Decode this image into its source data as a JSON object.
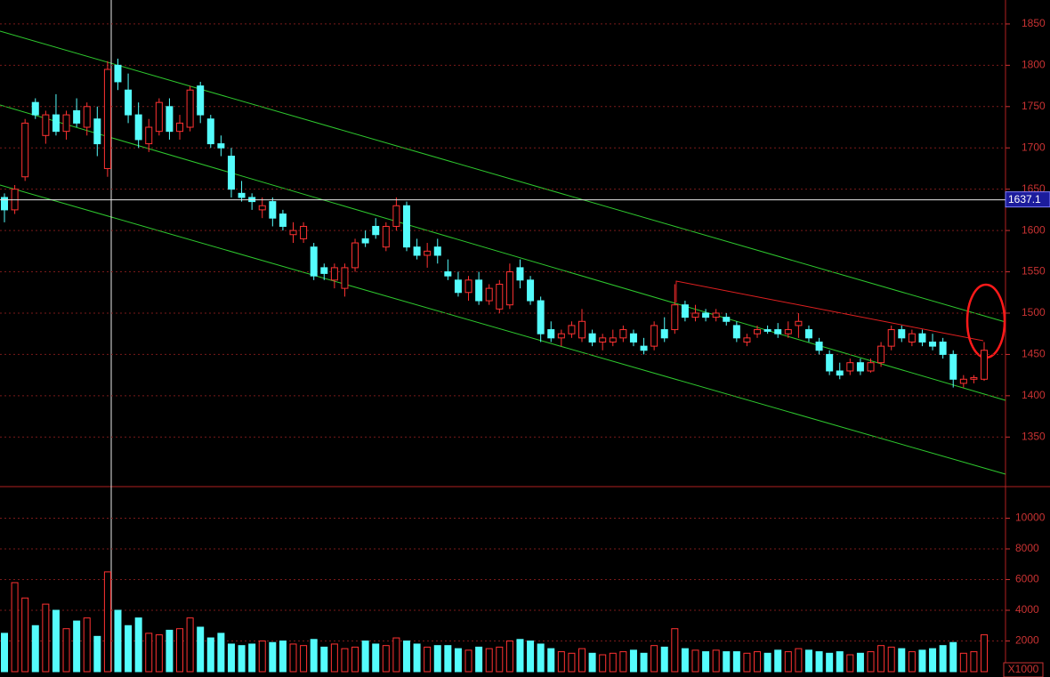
{
  "chart_data": {
    "type": "candlestick",
    "up_color": "#ff3232",
    "down_color": "#54fcfc",
    "grid": true,
    "ylim": [
      1290,
      1879
    ],
    "yticks": [
      1350,
      1400,
      1450,
      1500,
      1550,
      1600,
      1650,
      1700,
      1750,
      1800,
      1850
    ],
    "crosshair_value": 1637.1,
    "ohlc": [
      [
        1640,
        1645,
        1610,
        1625
      ],
      [
        1625,
        1655,
        1620,
        1650
      ],
      [
        1665,
        1735,
        1660,
        1730
      ],
      [
        1755,
        1760,
        1735,
        1740
      ],
      [
        1715,
        1745,
        1705,
        1740
      ],
      [
        1740,
        1765,
        1715,
        1720
      ],
      [
        1720,
        1745,
        1710,
        1740
      ],
      [
        1745,
        1760,
        1725,
        1730
      ],
      [
        1725,
        1755,
        1715,
        1750
      ],
      [
        1735,
        1750,
        1690,
        1705
      ],
      [
        1675,
        1805,
        1665,
        1795
      ],
      [
        1800,
        1808,
        1770,
        1780
      ],
      [
        1770,
        1790,
        1730,
        1740
      ],
      [
        1740,
        1755,
        1700,
        1710
      ],
      [
        1705,
        1735,
        1695,
        1725
      ],
      [
        1720,
        1760,
        1715,
        1755
      ],
      [
        1750,
        1760,
        1710,
        1720
      ],
      [
        1720,
        1740,
        1710,
        1730
      ],
      [
        1725,
        1775,
        1720,
        1770
      ],
      [
        1775,
        1780,
        1730,
        1740
      ],
      [
        1735,
        1740,
        1700,
        1705
      ],
      [
        1705,
        1715,
        1690,
        1700
      ],
      [
        1690,
        1700,
        1640,
        1650
      ],
      [
        1645,
        1660,
        1635,
        1640
      ],
      [
        1640,
        1645,
        1625,
        1635
      ],
      [
        1625,
        1640,
        1615,
        1630
      ],
      [
        1635,
        1640,
        1605,
        1615
      ],
      [
        1620,
        1625,
        1600,
        1605
      ],
      [
        1595,
        1610,
        1585,
        1600
      ],
      [
        1590,
        1610,
        1585,
        1605
      ],
      [
        1580,
        1585,
        1540,
        1545
      ],
      [
        1555,
        1560,
        1540,
        1548
      ],
      [
        1540,
        1560,
        1530,
        1555
      ],
      [
        1530,
        1560,
        1520,
        1555
      ],
      [
        1555,
        1590,
        1550,
        1585
      ],
      [
        1590,
        1600,
        1580,
        1585
      ],
      [
        1605,
        1615,
        1590,
        1595
      ],
      [
        1580,
        1610,
        1575,
        1605
      ],
      [
        1605,
        1640,
        1600,
        1630
      ],
      [
        1630,
        1635,
        1575,
        1580
      ],
      [
        1580,
        1590,
        1565,
        1570
      ],
      [
        1570,
        1585,
        1555,
        1575
      ],
      [
        1580,
        1590,
        1560,
        1570
      ],
      [
        1550,
        1565,
        1540,
        1545
      ],
      [
        1540,
        1550,
        1520,
        1525
      ],
      [
        1525,
        1545,
        1515,
        1540
      ],
      [
        1540,
        1550,
        1510,
        1515
      ],
      [
        1515,
        1535,
        1510,
        1530
      ],
      [
        1505,
        1540,
        1500,
        1535
      ],
      [
        1510,
        1560,
        1505,
        1550
      ],
      [
        1555,
        1565,
        1530,
        1540
      ],
      [
        1540,
        1545,
        1510,
        1515
      ],
      [
        1515,
        1520,
        1465,
        1475
      ],
      [
        1480,
        1490,
        1465,
        1470
      ],
      [
        1470,
        1480,
        1460,
        1475
      ],
      [
        1475,
        1490,
        1470,
        1485
      ],
      [
        1470,
        1505,
        1465,
        1490
      ],
      [
        1475,
        1480,
        1460,
        1465
      ],
      [
        1465,
        1475,
        1455,
        1470
      ],
      [
        1465,
        1480,
        1460,
        1470
      ],
      [
        1470,
        1485,
        1465,
        1480
      ],
      [
        1475,
        1480,
        1460,
        1465
      ],
      [
        1460,
        1470,
        1450,
        1455
      ],
      [
        1460,
        1490,
        1455,
        1485
      ],
      [
        1480,
        1495,
        1465,
        1470
      ],
      [
        1480,
        1535,
        1475,
        1510
      ],
      [
        1510,
        1515,
        1490,
        1495
      ],
      [
        1495,
        1510,
        1490,
        1500
      ],
      [
        1500,
        1505,
        1490,
        1495
      ],
      [
        1495,
        1505,
        1490,
        1500
      ],
      [
        1495,
        1500,
        1485,
        1490
      ],
      [
        1485,
        1490,
        1465,
        1470
      ],
      [
        1465,
        1475,
        1460,
        1470
      ],
      [
        1475,
        1485,
        1470,
        1480
      ],
      [
        1480,
        1485,
        1475,
        1478
      ],
      [
        1480,
        1488,
        1470,
        1475
      ],
      [
        1475,
        1490,
        1470,
        1480
      ],
      [
        1485,
        1500,
        1470,
        1490
      ],
      [
        1480,
        1485,
        1465,
        1470
      ],
      [
        1465,
        1470,
        1450,
        1455
      ],
      [
        1450,
        1455,
        1425,
        1430
      ],
      [
        1430,
        1440,
        1420,
        1425
      ],
      [
        1430,
        1445,
        1425,
        1440
      ],
      [
        1440,
        1445,
        1425,
        1430
      ],
      [
        1430,
        1445,
        1428,
        1440
      ],
      [
        1440,
        1465,
        1435,
        1460
      ],
      [
        1460,
        1485,
        1455,
        1480
      ],
      [
        1480,
        1485,
        1465,
        1470
      ],
      [
        1465,
        1480,
        1460,
        1475
      ],
      [
        1475,
        1480,
        1460,
        1465
      ],
      [
        1465,
        1475,
        1455,
        1460
      ],
      [
        1465,
        1470,
        1445,
        1450
      ],
      [
        1450,
        1455,
        1410,
        1420
      ],
      [
        1415,
        1425,
        1410,
        1420
      ],
      [
        1420,
        1425,
        1415,
        1422
      ],
      [
        1420,
        1465,
        1418,
        1455
      ]
    ],
    "volume": [
      2500,
      5800,
      4800,
      3000,
      4400,
      4000,
      2800,
      3300,
      3500,
      2300,
      6500,
      4000,
      3000,
      3500,
      2500,
      2400,
      2700,
      2800,
      3500,
      2900,
      2200,
      2500,
      1800,
      1700,
      1800,
      2000,
      1900,
      2000,
      1800,
      1700,
      2100,
      1600,
      1800,
      1500,
      1600,
      2000,
      1800,
      1700,
      2200,
      2000,
      1800,
      1600,
      1700,
      1700,
      1500,
      1400,
      1600,
      1500,
      1600,
      2000,
      2100,
      2000,
      1800,
      1500,
      1300,
      1200,
      1500,
      1200,
      1100,
      1200,
      1300,
      1400,
      1200,
      1700,
      1600,
      2800,
      1500,
      1400,
      1300,
      1400,
      1300,
      1300,
      1200,
      1300,
      1200,
      1400,
      1300,
      1500,
      1400,
      1300,
      1200,
      1300,
      1100,
      1200,
      1300,
      1700,
      1600,
      1500,
      1300,
      1400,
      1500,
      1700,
      1900,
      1200,
      1300,
      2400
    ],
    "volume_ylim": [
      0,
      12000
    ],
    "volume_yticks": [
      2000,
      4000,
      6000,
      8000,
      10000
    ],
    "volume_unit": "X1000"
  }
}
